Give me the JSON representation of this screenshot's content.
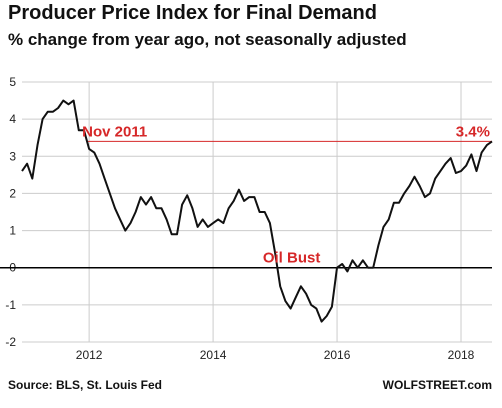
{
  "header": {
    "title": "Producer Price Index for Final Demand",
    "subtitle": "% change from year ago, not seasonally adjusted"
  },
  "footer": {
    "source": "Source: BLS, St. Louis Fed",
    "brand": "WOLFSTREET.com"
  },
  "chart_data": {
    "type": "line",
    "title": "Producer Price Index for Final Demand",
    "subtitle": "% change from year ago, not seasonally adjusted",
    "xlim": [
      2010.917,
      2018.5
    ],
    "ylim": [
      -2,
      5
    ],
    "grid": true,
    "x_ticks": [
      2012,
      2014,
      2016,
      2018
    ],
    "x_tick_labels": [
      "2012",
      "2014",
      "2016",
      "2018"
    ],
    "y_ticks": [
      -2,
      -1,
      0,
      1,
      2,
      3,
      4,
      5
    ],
    "y_tick_labels": [
      "-2",
      "-1",
      "0",
      "1",
      "2",
      "3",
      "4",
      "5"
    ],
    "zero_line": true,
    "reference_line": {
      "value": 3.4,
      "color": "#d62728"
    },
    "annotations": [
      {
        "text": "Nov 2011",
        "x": 2011.92,
        "y": 3.4
      },
      {
        "text": "3.4%",
        "x": 2018.25,
        "y": 3.4
      },
      {
        "text": "Oil Bust",
        "x": 2015.17,
        "y": 0
      }
    ],
    "series": [
      {
        "color": "#111111",
        "points": [
          [
            2010.917,
            2.6
          ],
          [
            2011.0,
            2.8
          ],
          [
            2011.083,
            2.4
          ],
          [
            2011.167,
            3.3
          ],
          [
            2011.25,
            4.0
          ],
          [
            2011.333,
            4.2
          ],
          [
            2011.417,
            4.2
          ],
          [
            2011.5,
            4.3
          ],
          [
            2011.583,
            4.5
          ],
          [
            2011.667,
            4.4
          ],
          [
            2011.75,
            4.5
          ],
          [
            2011.833,
            3.7
          ],
          [
            2011.917,
            3.7
          ],
          [
            2012.0,
            3.2
          ],
          [
            2012.083,
            3.1
          ],
          [
            2012.167,
            2.8
          ],
          [
            2012.25,
            2.4
          ],
          [
            2012.333,
            2.0
          ],
          [
            2012.417,
            1.6
          ],
          [
            2012.5,
            1.3
          ],
          [
            2012.583,
            1.0
          ],
          [
            2012.667,
            1.2
          ],
          [
            2012.75,
            1.5
          ],
          [
            2012.833,
            1.9
          ],
          [
            2012.917,
            1.7
          ],
          [
            2013.0,
            1.9
          ],
          [
            2013.083,
            1.6
          ],
          [
            2013.167,
            1.6
          ],
          [
            2013.25,
            1.3
          ],
          [
            2013.333,
            0.9
          ],
          [
            2013.417,
            0.9
          ],
          [
            2013.5,
            1.7
          ],
          [
            2013.583,
            1.95
          ],
          [
            2013.667,
            1.6
          ],
          [
            2013.75,
            1.1
          ],
          [
            2013.833,
            1.3
          ],
          [
            2013.917,
            1.1
          ],
          [
            2014.0,
            1.2
          ],
          [
            2014.083,
            1.3
          ],
          [
            2014.167,
            1.2
          ],
          [
            2014.25,
            1.6
          ],
          [
            2014.333,
            1.8
          ],
          [
            2014.417,
            2.1
          ],
          [
            2014.5,
            1.8
          ],
          [
            2014.583,
            1.9
          ],
          [
            2014.667,
            1.9
          ],
          [
            2014.75,
            1.5
          ],
          [
            2014.833,
            1.5
          ],
          [
            2014.917,
            1.2
          ],
          [
            2015.0,
            0.4
          ],
          [
            2015.083,
            -0.5
          ],
          [
            2015.167,
            -0.9
          ],
          [
            2015.25,
            -1.1
          ],
          [
            2015.333,
            -0.8
          ],
          [
            2015.417,
            -0.5
          ],
          [
            2015.5,
            -0.7
          ],
          [
            2015.583,
            -1.0
          ],
          [
            2015.667,
            -1.1
          ],
          [
            2015.75,
            -1.45
          ],
          [
            2015.833,
            -1.3
          ],
          [
            2015.917,
            -1.05
          ],
          [
            2016.0,
            0.0
          ],
          [
            2016.083,
            0.1
          ],
          [
            2016.167,
            -0.1
          ],
          [
            2016.25,
            0.2
          ],
          [
            2016.333,
            0.0
          ],
          [
            2016.417,
            0.2
          ],
          [
            2016.5,
            0.0
          ],
          [
            2016.583,
            0.0
          ],
          [
            2016.667,
            0.6
          ],
          [
            2016.75,
            1.1
          ],
          [
            2016.833,
            1.3
          ],
          [
            2016.917,
            1.75
          ],
          [
            2017.0,
            1.75
          ],
          [
            2017.083,
            2.0
          ],
          [
            2017.167,
            2.2
          ],
          [
            2017.25,
            2.45
          ],
          [
            2017.333,
            2.2
          ],
          [
            2017.417,
            1.9
          ],
          [
            2017.5,
            2.0
          ],
          [
            2017.583,
            2.4
          ],
          [
            2017.667,
            2.6
          ],
          [
            2017.75,
            2.8
          ],
          [
            2017.833,
            2.95
          ],
          [
            2017.917,
            2.55
          ],
          [
            2018.0,
            2.6
          ],
          [
            2018.083,
            2.75
          ],
          [
            2018.167,
            3.05
          ],
          [
            2018.25,
            2.6
          ],
          [
            2018.333,
            3.1
          ],
          [
            2018.417,
            3.3
          ],
          [
            2018.5,
            3.4
          ]
        ]
      }
    ]
  }
}
